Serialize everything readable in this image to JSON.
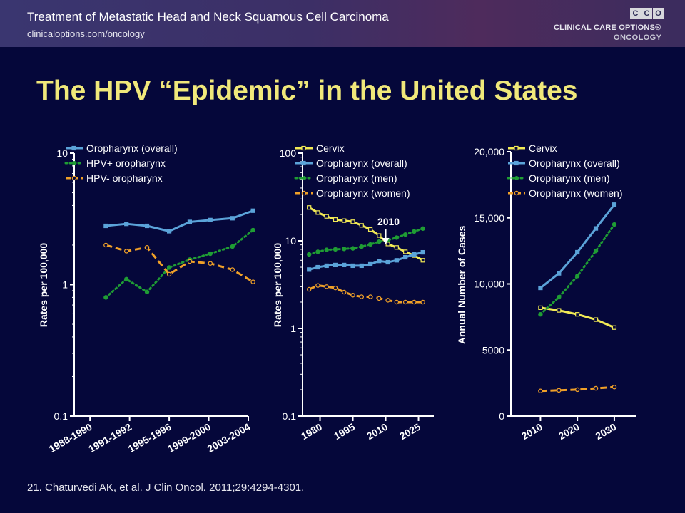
{
  "header": {
    "title": "Treatment of Metastatic Head and Neck Squamous Cell Carcinoma",
    "subtitle": "clinicaloptions.com/oncology",
    "logo_letters": [
      "C",
      "C",
      "O"
    ],
    "logo_line1": "CLINICAL CARE OPTIONS®",
    "logo_line2": "ONCOLOGY"
  },
  "title": "The HPV “Epidemic” in the United States",
  "footnote": "21. Chaturvedi AK, et al. J Clin Oncol. 2011;29:4294-4301.",
  "colors": {
    "blue": "#5ba3d9",
    "green": "#1f9d34",
    "orange": "#f0a028",
    "yellow": "#f2ea55",
    "background": "#05073a"
  },
  "chart_data": [
    {
      "type": "line",
      "ylabel": "Rates per 100,000",
      "yscale": "log",
      "ylim": [
        0.1,
        10
      ],
      "yticks": [
        {
          "v": 0.1,
          "label": "0.1"
        },
        {
          "v": 1,
          "label": "1"
        },
        {
          "v": 10,
          "label": "10"
        }
      ],
      "categories": [
        "1988-1990",
        "1991-1992",
        "1995-1996",
        "1999-2000",
        "2003-2004"
      ],
      "x": [
        1,
        2,
        3,
        4,
        5,
        6,
        7,
        8,
        9,
        10,
        11
      ],
      "xlim": [
        0,
        11
      ],
      "xticks": [
        {
          "v": 1,
          "label": "1988-1990"
        },
        {
          "v": 3.5,
          "label": "1991-1992"
        },
        {
          "v": 6,
          "label": "1995-1996"
        },
        {
          "v": 8.5,
          "label": "1999-2000"
        },
        {
          "v": 11,
          "label": "2003-2004"
        }
      ],
      "series": [
        {
          "name": "Oropharynx (overall)",
          "color": "#5ba3d9",
          "style": "solid",
          "marker": "square",
          "x": [
            2,
            3.3,
            4.6,
            6,
            7.3,
            8.6,
            10,
            11.3
          ],
          "values": [
            2.8,
            2.9,
            2.8,
            2.55,
            3.0,
            3.1,
            3.2,
            3.65
          ]
        },
        {
          "name": "HPV+ oropharynx",
          "color": "#1f9d34",
          "style": "dotted",
          "marker": "dot",
          "x": [
            2,
            3.3,
            4.6,
            6,
            7.3,
            8.6,
            10,
            11.3
          ],
          "values": [
            0.8,
            1.1,
            0.88,
            1.35,
            1.55,
            1.72,
            1.95,
            2.6
          ]
        },
        {
          "name": "HPV- oropharynx",
          "color": "#f0a028",
          "style": "dashed",
          "marker": "circle",
          "x": [
            2,
            3.3,
            4.6,
            6,
            7.3,
            8.6,
            10,
            11.3
          ],
          "values": [
            2.0,
            1.8,
            1.92,
            1.2,
            1.5,
            1.45,
            1.3,
            1.05
          ]
        }
      ]
    },
    {
      "type": "line",
      "ylabel": "Rates per 100,000",
      "yscale": "log",
      "ylim": [
        0.1,
        100
      ],
      "yticks": [
        {
          "v": 0.1,
          "label": "0.1"
        },
        {
          "v": 1,
          "label": "1"
        },
        {
          "v": 10,
          "label": "10"
        },
        {
          "v": 100,
          "label": "100"
        }
      ],
      "xlim": [
        1972,
        2032
      ],
      "xticks": [
        {
          "v": 1980,
          "label": "1980"
        },
        {
          "v": 1995,
          "label": "1995"
        },
        {
          "v": 2010,
          "label": "2010"
        },
        {
          "v": 2025,
          "label": "2025"
        }
      ],
      "annotation": {
        "label": "2010",
        "x": 2010
      },
      "series": [
        {
          "name": "Cervix",
          "color": "#f2ea55",
          "style": "solid",
          "marker": "square",
          "x": [
            1975,
            1979,
            1983,
            1987,
            1991,
            1995,
            1999,
            2003,
            2007,
            2011,
            2015,
            2019,
            2023,
            2027
          ],
          "values": [
            24,
            21,
            19,
            17.5,
            17,
            16.5,
            15,
            13.5,
            11.5,
            9.2,
            8.4,
            7.5,
            6.8,
            6.0
          ]
        },
        {
          "name": "Oropharynx (overall)",
          "color": "#5ba3d9",
          "style": "solid",
          "marker": "square",
          "x": [
            1975,
            1979,
            1983,
            1987,
            1991,
            1995,
            1999,
            2003,
            2007,
            2011,
            2015,
            2019,
            2023,
            2027
          ],
          "values": [
            4.7,
            5.0,
            5.2,
            5.3,
            5.3,
            5.2,
            5.2,
            5.4,
            5.9,
            5.7,
            6.0,
            6.5,
            7.0,
            7.4
          ]
        },
        {
          "name": "Oropharynx (men)",
          "color": "#1f9d34",
          "style": "dotted",
          "marker": "dot",
          "x": [
            1975,
            1979,
            1983,
            1987,
            1991,
            1995,
            1999,
            2003,
            2007,
            2011,
            2015,
            2019,
            2023,
            2027
          ],
          "values": [
            7.0,
            7.5,
            7.9,
            8.0,
            8.1,
            8.2,
            8.6,
            9.1,
            9.8,
            10.2,
            10.9,
            11.8,
            12.8,
            13.8
          ]
        },
        {
          "name": "Oropharynx (women)",
          "color": "#f0a028",
          "style": "dashed",
          "marker": "circle",
          "x": [
            1975,
            1979,
            1983,
            1987,
            1991,
            1995,
            1999,
            2003,
            2007,
            2011,
            2015,
            2019,
            2023,
            2027
          ],
          "values": [
            2.8,
            3.1,
            3.0,
            2.9,
            2.6,
            2.4,
            2.3,
            2.3,
            2.2,
            2.1,
            2.0,
            2.0,
            2.0,
            2.0
          ]
        }
      ]
    },
    {
      "type": "line",
      "ylabel": "Annual Number of Cases",
      "ylim": [
        0,
        20000
      ],
      "yticks": [
        {
          "v": 0,
          "label": "0"
        },
        {
          "v": 5000,
          "label": "5000"
        },
        {
          "v": 10000,
          "label": "10,000"
        },
        {
          "v": 15000,
          "label": "15,000"
        },
        {
          "v": 20000,
          "label": "20,000"
        }
      ],
      "xlim": [
        2002,
        2036
      ],
      "xticks": [
        {
          "v": 2010,
          "label": "2010"
        },
        {
          "v": 2020,
          "label": "2020"
        },
        {
          "v": 2030,
          "label": "2030"
        }
      ],
      "series": [
        {
          "name": "Cervix",
          "color": "#f2ea55",
          "style": "solid",
          "marker": "square",
          "x": [
            2010,
            2015,
            2020,
            2025,
            2030
          ],
          "values": [
            8200,
            8000,
            7700,
            7300,
            6700
          ]
        },
        {
          "name": "Oropharynx (overall)",
          "color": "#5ba3d9",
          "style": "solid",
          "marker": "square",
          "x": [
            2010,
            2015,
            2020,
            2025,
            2030
          ],
          "values": [
            9700,
            10800,
            12400,
            14200,
            16000
          ]
        },
        {
          "name": "Oropharynx (men)",
          "color": "#1f9d34",
          "style": "dotted",
          "marker": "dot",
          "x": [
            2010,
            2015,
            2020,
            2025,
            2030
          ],
          "values": [
            7700,
            9000,
            10600,
            12500,
            14500
          ]
        },
        {
          "name": "Oropharynx (women)",
          "color": "#f0a028",
          "style": "dashed",
          "marker": "circle",
          "x": [
            2010,
            2015,
            2020,
            2025,
            2030
          ],
          "values": [
            1900,
            1950,
            2000,
            2100,
            2200
          ]
        }
      ]
    }
  ]
}
